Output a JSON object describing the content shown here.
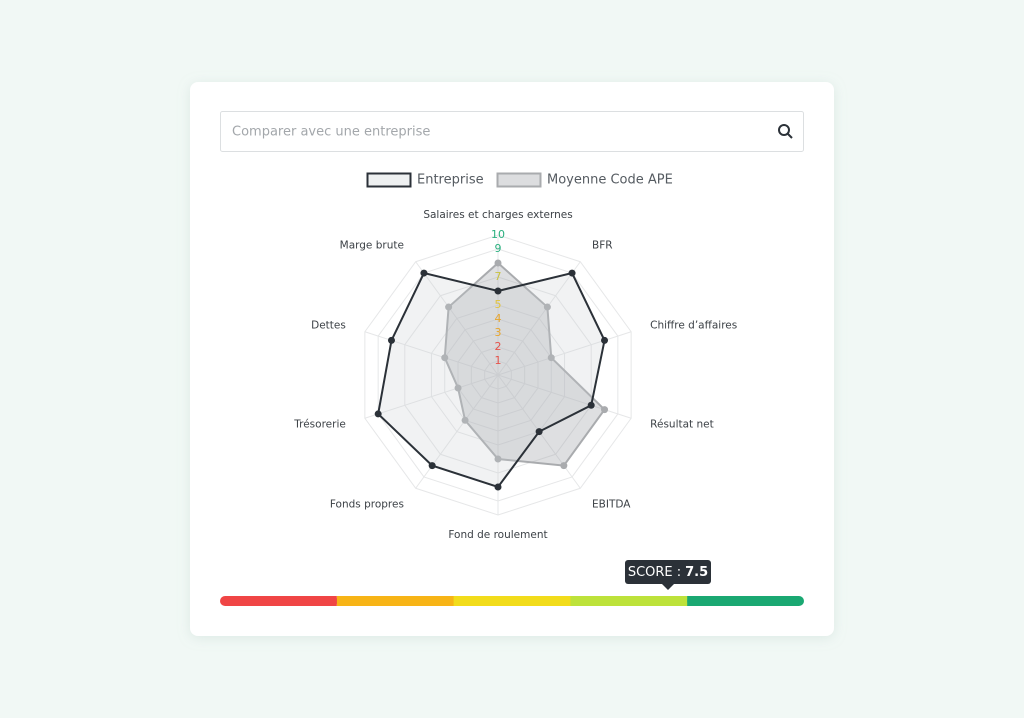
{
  "search": {
    "placeholder": "Comparer avec une entreprise"
  },
  "chart_data": {
    "type": "radar",
    "categories": [
      "Salaires et charges externes",
      "BFR",
      "Chiffre d’affaires",
      "Résultat net",
      "EBITDA",
      "Fond de roulement",
      "Fonds propres",
      "Trésorerie",
      "Dettes",
      "Marge brute"
    ],
    "series": [
      {
        "name": "Entreprise",
        "color": "#2b3138",
        "values": [
          6,
          9,
          8,
          7,
          5,
          8,
          8,
          9,
          8,
          9
        ]
      },
      {
        "name": "Moyenne Code APE",
        "color": "#a9abae",
        "values": [
          8,
          6,
          4,
          8,
          8,
          6,
          4,
          3,
          4,
          6
        ]
      }
    ],
    "ylim": [
      0,
      10
    ],
    "yticks": [
      1,
      2,
      3,
      4,
      5,
      7,
      9,
      10
    ],
    "ytick_colors": [
      "#e5534b",
      "#e5534b",
      "#e7a52c",
      "#e7a52c",
      "#e2c33a",
      "#c9c23e",
      "#2bb07f",
      "#2bb07f"
    ],
    "grid": true
  },
  "score": {
    "label": "SCORE :",
    "value": 7.5,
    "lim": [
      0,
      10
    ],
    "segment_colors": [
      "#f04545",
      "#f7b416",
      "#f2dc1b",
      "#bde23a",
      "#1aa872"
    ]
  }
}
